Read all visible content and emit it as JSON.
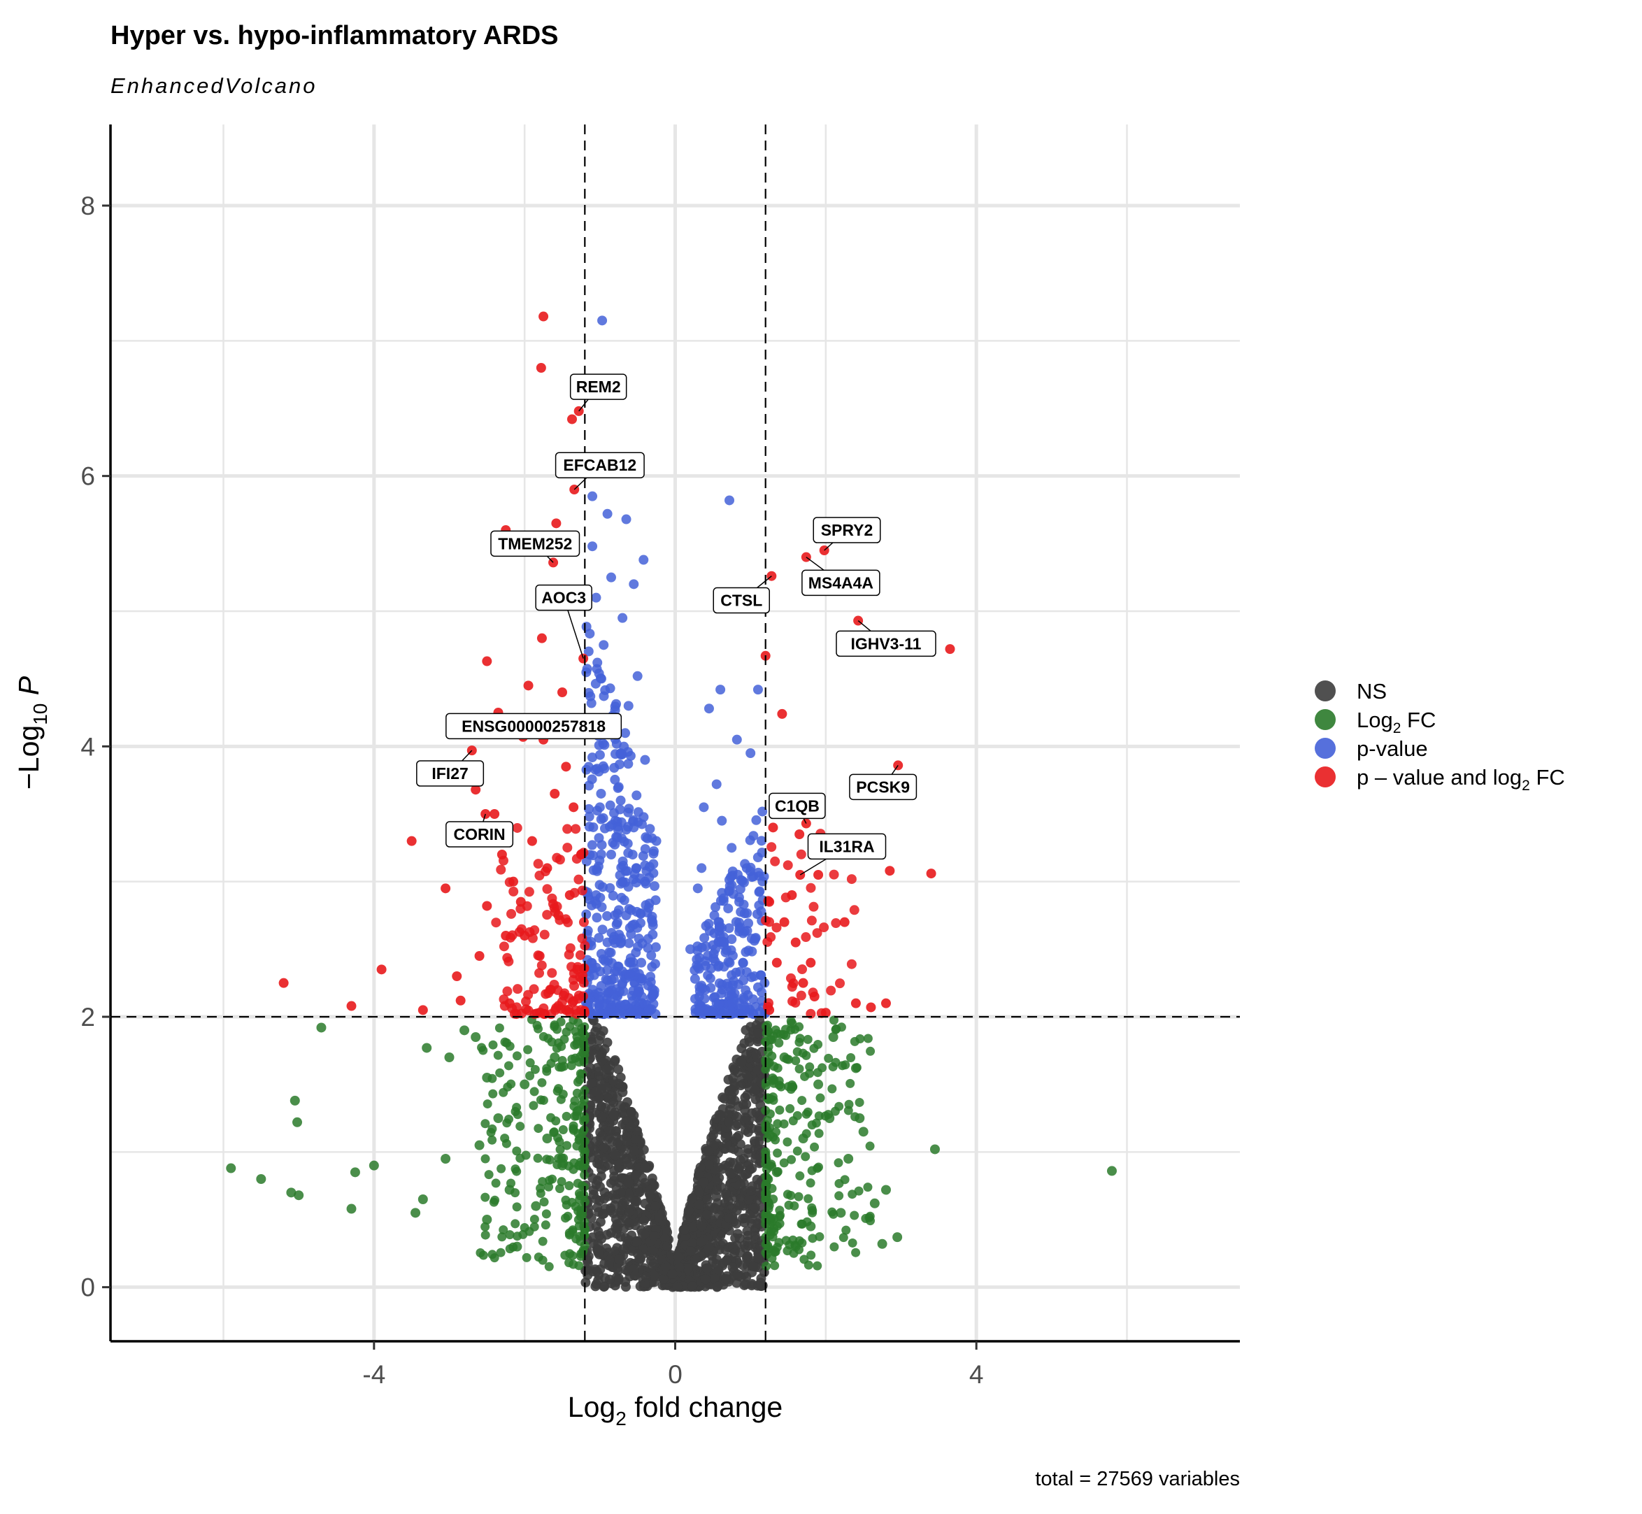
{
  "chart_data": {
    "type": "scatter",
    "title": "Hyper vs. hypo-inflammatory ARDS",
    "subtitle": "EnhancedVolcano",
    "xlabel": "Log2 fold change",
    "ylabel": "-Log10 P",
    "caption": "total = 27569 variables",
    "xlim": [
      -7.5,
      7.5
    ],
    "ylim": [
      -0.4,
      8.6
    ],
    "xticks": [
      -4,
      0,
      4
    ],
    "xtick_labels": [
      "-4",
      "0",
      "4"
    ],
    "yticks": [
      0,
      2,
      4,
      6,
      8
    ],
    "ytick_labels": [
      "0",
      "2",
      "4",
      "6",
      "8"
    ],
    "grid": true,
    "thresholds": {
      "log2fc": 1.2,
      "neglog10p": 2
    },
    "legend_position": "right",
    "legend": [
      {
        "key": "ns",
        "label": "NS",
        "color": "#3d3d3d"
      },
      {
        "key": "fc",
        "label": "Log2 FC",
        "color": "#2a7a2a"
      },
      {
        "key": "p",
        "label": "p-value",
        "color": "#4461d8"
      },
      {
        "key": "both",
        "label": "p – value and log2 FC",
        "color": "#e8191c"
      }
    ],
    "labeled_genes": [
      {
        "gene": "REM2",
        "x": -1.28,
        "y": 6.48,
        "label_x": -1.02,
        "label_y": 6.66
      },
      {
        "gene": "EFCAB12",
        "x": -1.34,
        "y": 5.9,
        "label_x": -1.0,
        "label_y": 6.08
      },
      {
        "gene": "TMEM252",
        "x": -1.62,
        "y": 5.36,
        "label_x": -1.86,
        "label_y": 5.5
      },
      {
        "gene": "AOC3",
        "x": -1.22,
        "y": 4.65,
        "label_x": -1.48,
        "label_y": 5.1
      },
      {
        "gene": "ENSG00000257818",
        "x": -2.02,
        "y": 4.07,
        "label_x": -1.88,
        "label_y": 4.15
      },
      {
        "gene": "IFI27",
        "x": -2.7,
        "y": 3.97,
        "label_x": -2.99,
        "label_y": 3.8
      },
      {
        "gene": "CORIN",
        "x": -2.52,
        "y": 3.5,
        "label_x": -2.6,
        "label_y": 3.35
      },
      {
        "gene": "SPRY2",
        "x": 1.98,
        "y": 5.45,
        "label_x": 2.28,
        "label_y": 5.6
      },
      {
        "gene": "MS4A4A",
        "x": 1.74,
        "y": 5.4,
        "label_x": 2.2,
        "label_y": 5.21
      },
      {
        "gene": "CTSL",
        "x": 1.28,
        "y": 5.26,
        "label_x": 0.88,
        "label_y": 5.08
      },
      {
        "gene": "IGHV3-11",
        "x": 2.43,
        "y": 4.93,
        "label_x": 2.8,
        "label_y": 4.76
      },
      {
        "gene": "PCSK9",
        "x": 2.96,
        "y": 3.86,
        "label_x": 2.76,
        "label_y": 3.7
      },
      {
        "gene": "C1QB",
        "x": 1.74,
        "y": 3.43,
        "label_x": 1.62,
        "label_y": 3.56
      },
      {
        "gene": "IL31RA",
        "x": 1.66,
        "y": 3.05,
        "label_x": 2.28,
        "label_y": 3.26
      }
    ],
    "points_both": [
      [
        -1.75,
        7.18
      ],
      [
        -1.78,
        6.8
      ],
      [
        -1.37,
        6.42
      ],
      [
        -1.28,
        6.48
      ],
      [
        -2.25,
        5.6
      ],
      [
        -1.58,
        5.65
      ],
      [
        -1.34,
        5.9
      ],
      [
        -1.62,
        5.36
      ],
      [
        -1.3,
        5.15
      ],
      [
        -1.77,
        4.8
      ],
      [
        -1.22,
        4.65
      ],
      [
        -2.5,
        4.63
      ],
      [
        -1.95,
        4.45
      ],
      [
        -1.5,
        4.4
      ],
      [
        -2.35,
        4.25
      ],
      [
        -2.02,
        4.07
      ],
      [
        -2.7,
        3.97
      ],
      [
        -2.1,
        4.1
      ],
      [
        -1.75,
        4.05
      ],
      [
        -2.65,
        3.68
      ],
      [
        -2.4,
        3.5
      ],
      [
        -2.52,
        3.5
      ],
      [
        -2.3,
        3.2
      ],
      [
        -2.15,
        3.0
      ],
      [
        -3.5,
        3.3
      ],
      [
        -3.05,
        2.95
      ],
      [
        -2.5,
        2.82
      ],
      [
        -2.25,
        2.6
      ],
      [
        -2.6,
        2.45
      ],
      [
        -2.9,
        2.3
      ],
      [
        -3.9,
        2.35
      ],
      [
        -4.3,
        2.08
      ],
      [
        -5.2,
        2.25
      ],
      [
        -3.35,
        2.05
      ],
      [
        -2.85,
        2.12
      ],
      [
        -1.45,
        3.85
      ],
      [
        -1.6,
        3.65
      ],
      [
        -1.35,
        3.55
      ],
      [
        -1.9,
        3.3
      ],
      [
        -1.7,
        3.1
      ],
      [
        -1.4,
        2.9
      ],
      [
        -1.55,
        2.75
      ],
      [
        -2.0,
        2.6
      ],
      [
        -1.8,
        2.45
      ],
      [
        -1.3,
        2.35
      ],
      [
        -1.65,
        2.2
      ],
      [
        -2.2,
        2.1
      ],
      [
        -1.45,
        2.05
      ],
      [
        -2.05,
        2.85
      ],
      [
        -1.25,
        3.2
      ],
      [
        1.98,
        5.45
      ],
      [
        1.74,
        5.4
      ],
      [
        1.28,
        5.26
      ],
      [
        2.43,
        4.93
      ],
      [
        3.65,
        4.72
      ],
      [
        1.2,
        4.67
      ],
      [
        1.42,
        4.24
      ],
      [
        2.96,
        3.86
      ],
      [
        1.74,
        3.43
      ],
      [
        1.66,
        3.05
      ],
      [
        1.5,
        3.6
      ],
      [
        1.65,
        3.35
      ],
      [
        1.9,
        3.05
      ],
      [
        2.85,
        3.08
      ],
      [
        3.4,
        3.06
      ],
      [
        1.25,
        2.85
      ],
      [
        1.45,
        2.7
      ],
      [
        2.25,
        2.7
      ],
      [
        1.6,
        2.55
      ],
      [
        1.35,
        2.4
      ],
      [
        1.7,
        2.25
      ],
      [
        1.85,
        2.15
      ],
      [
        2.4,
        2.1
      ],
      [
        2.8,
        2.1
      ],
      [
        2.6,
        2.07
      ],
      [
        1.25,
        2.05
      ],
      [
        2.0,
        2.03
      ],
      [
        1.55,
        2.9
      ],
      [
        1.3,
        3.4
      ],
      [
        1.8,
        2.4
      ]
    ],
    "points_p": [
      [
        -0.97,
        7.15
      ],
      [
        0.72,
        5.82
      ],
      [
        -1.1,
        5.85
      ],
      [
        -0.65,
        5.68
      ],
      [
        -0.9,
        5.72
      ],
      [
        -1.1,
        5.48
      ],
      [
        -0.42,
        5.38
      ],
      [
        -0.55,
        5.2
      ],
      [
        -0.85,
        5.25
      ],
      [
        -1.05,
        5.1
      ],
      [
        -0.7,
        4.95
      ],
      [
        -0.95,
        4.75
      ],
      [
        -0.5,
        4.52
      ],
      [
        -0.62,
        4.3
      ],
      [
        -0.8,
        4.15
      ],
      [
        0.6,
        4.42
      ],
      [
        1.1,
        4.42
      ],
      [
        0.45,
        4.28
      ],
      [
        0.82,
        4.05
      ],
      [
        1.0,
        3.95
      ],
      [
        0.55,
        3.72
      ],
      [
        0.38,
        3.55
      ],
      [
        0.75,
        3.25
      ],
      [
        0.95,
        3.1
      ],
      [
        0.3,
        2.95
      ],
      [
        0.52,
        2.75
      ],
      [
        0.65,
        2.55
      ],
      [
        0.9,
        2.4
      ],
      [
        0.4,
        2.2
      ],
      [
        0.75,
        2.1
      ],
      [
        0.2,
        2.5
      ],
      [
        0.62,
        3.45
      ],
      [
        0.35,
        3.1
      ],
      [
        0.85,
        2.85
      ],
      [
        1.05,
        2.3
      ],
      [
        -0.4,
        3.9
      ],
      [
        -0.75,
        3.7
      ],
      [
        -1.0,
        3.55
      ],
      [
        -0.55,
        3.4
      ],
      [
        -0.85,
        3.2
      ],
      [
        -0.4,
        3.0
      ],
      [
        -1.05,
        2.9
      ],
      [
        -0.65,
        2.75
      ],
      [
        -0.9,
        2.55
      ],
      [
        -0.45,
        2.4
      ],
      [
        -0.7,
        2.25
      ],
      [
        -1.0,
        2.15
      ],
      [
        -0.55,
        2.05
      ],
      [
        -0.3,
        2.7
      ],
      [
        -0.25,
        3.3
      ]
    ],
    "points_fc": [
      [
        -5.9,
        0.88
      ],
      [
        -5.5,
        0.8
      ],
      [
        -5.1,
        0.7
      ],
      [
        -5.0,
        0.68
      ],
      [
        -4.3,
        0.58
      ],
      [
        -4.25,
        0.85
      ],
      [
        -4.0,
        0.9
      ],
      [
        -3.45,
        0.55
      ],
      [
        -3.05,
        0.95
      ],
      [
        -3.3,
        1.77
      ],
      [
        -3.0,
        1.7
      ],
      [
        -2.8,
        1.9
      ],
      [
        -2.65,
        1.85
      ],
      [
        -2.5,
        1.55
      ],
      [
        -5.05,
        1.38
      ],
      [
        -5.02,
        1.22
      ],
      [
        -4.7,
        1.92
      ],
      [
        -2.35,
        1.25
      ],
      [
        -2.2,
        0.72
      ],
      [
        -3.35,
        0.65
      ],
      [
        -2.6,
        1.05
      ],
      [
        -2.0,
        1.5
      ],
      [
        -1.85,
        0.6
      ],
      [
        -2.1,
        0.3
      ],
      [
        -1.6,
        1.7
      ],
      [
        -1.4,
        0.4
      ],
      [
        -1.7,
        1.1
      ],
      [
        -1.5,
        0.9
      ],
      [
        -1.3,
        1.3
      ],
      [
        -2.5,
        0.5
      ],
      [
        3.45,
        1.02
      ],
      [
        5.8,
        0.86
      ],
      [
        2.8,
        0.72
      ],
      [
        2.75,
        0.32
      ],
      [
        2.95,
        0.37
      ],
      [
        2.65,
        0.62
      ],
      [
        2.4,
        1.62
      ],
      [
        2.45,
        1.25
      ],
      [
        2.3,
        0.95
      ],
      [
        2.1,
        1.85
      ],
      [
        1.9,
        1.5
      ],
      [
        1.7,
        1.1
      ],
      [
        2.2,
        0.55
      ],
      [
        1.6,
        0.3
      ],
      [
        1.45,
        1.7
      ],
      [
        1.35,
        0.85
      ],
      [
        1.8,
        0.45
      ],
      [
        2.05,
        1.25
      ],
      [
        1.55,
        1.95
      ],
      [
        2.5,
        1.15
      ]
    ]
  }
}
